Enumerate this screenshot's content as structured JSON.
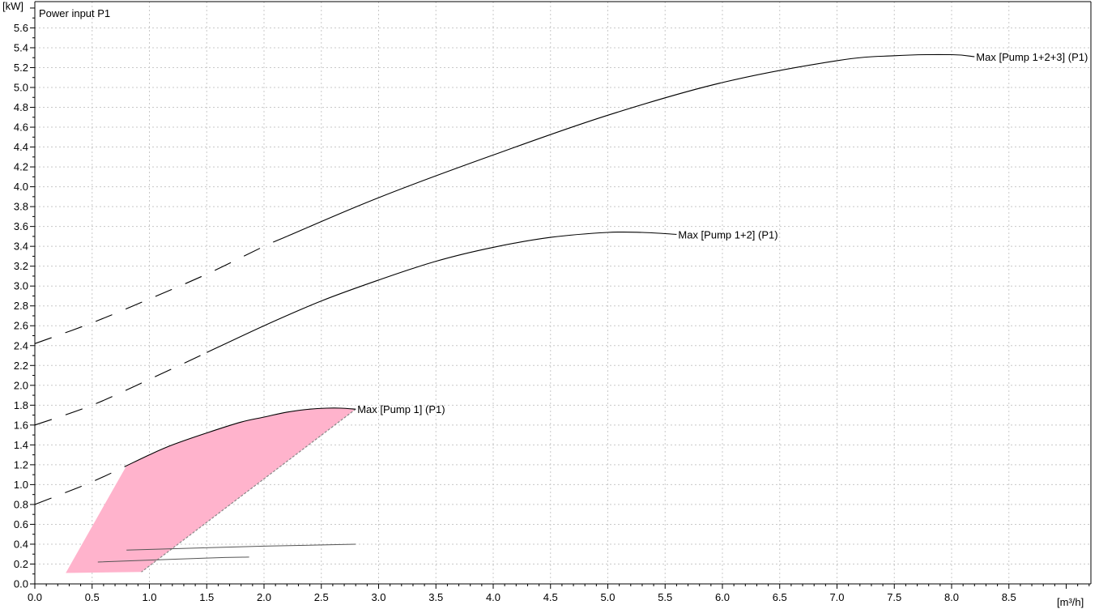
{
  "chart_data": {
    "type": "line",
    "title": "Power input P1",
    "y_unit": "[kW]",
    "x_unit": "[m³/h]",
    "xlim": [
      0,
      9.2
    ],
    "ylim": [
      0,
      5.8
    ],
    "x_major_ticks": [
      0.0,
      0.5,
      1.0,
      1.5,
      2.0,
      2.5,
      3.0,
      3.5,
      4.0,
      4.5,
      5.0,
      5.5,
      6.0,
      6.5,
      7.0,
      7.5,
      8.0,
      8.5
    ],
    "x_tick_labels": [
      "0.0",
      "0.5",
      "1.0",
      "1.5",
      "2.0",
      "2.5",
      "3.0",
      "3.5",
      "4.0",
      "4.5",
      "5.0",
      "5.5",
      "6.0",
      "6.5",
      "7.0",
      "7.5",
      "8.0",
      "8.5"
    ],
    "y_major_ticks": [
      0.0,
      0.2,
      0.4,
      0.6,
      0.8,
      1.0,
      1.2,
      1.4,
      1.6,
      1.8,
      2.0,
      2.2,
      2.4,
      2.6,
      2.8,
      3.0,
      3.2,
      3.4,
      3.6,
      3.8,
      4.0,
      4.2,
      4.4,
      4.6,
      4.8,
      5.0,
      5.2,
      5.4,
      5.6
    ],
    "y_tick_labels": [
      "0.0",
      "0.2",
      "0.4",
      "0.6",
      "0.8",
      "1.0",
      "1.2",
      "1.4",
      "1.6",
      "1.8",
      "2.0",
      "2.2",
      "2.4",
      "2.6",
      "2.8",
      "3.0",
      "3.2",
      "3.4",
      "3.6",
      "3.8",
      "4.0",
      "4.2",
      "4.4",
      "4.6",
      "4.8",
      "5.0",
      "5.2",
      "5.4",
      "5.6"
    ],
    "grid": true,
    "grid_style": "dotted",
    "series": [
      {
        "name": "Max [Pump 1] (P1)",
        "color": "#000000",
        "dashed_points": [
          [
            0.0,
            0.8
          ],
          [
            0.2,
            0.89
          ],
          [
            0.4,
            0.98
          ],
          [
            0.6,
            1.08
          ],
          [
            0.8,
            1.19
          ]
        ],
        "solid_points": [
          [
            0.8,
            1.19
          ],
          [
            1.0,
            1.3
          ],
          [
            1.2,
            1.4
          ],
          [
            1.5,
            1.52
          ],
          [
            1.8,
            1.63
          ],
          [
            2.0,
            1.68
          ],
          [
            2.2,
            1.73
          ],
          [
            2.4,
            1.76
          ],
          [
            2.55,
            1.77
          ],
          [
            2.67,
            1.77
          ],
          [
            2.8,
            1.76
          ]
        ]
      },
      {
        "name": "Max [Pump 1+2] (P1)",
        "color": "#000000",
        "dashed_points": [
          [
            0.0,
            1.6
          ],
          [
            0.5,
            1.8
          ],
          [
            1.0,
            2.06
          ],
          [
            1.5,
            2.33
          ]
        ],
        "solid_points": [
          [
            1.5,
            2.33
          ],
          [
            2.0,
            2.6
          ],
          [
            2.5,
            2.85
          ],
          [
            3.0,
            3.06
          ],
          [
            3.5,
            3.25
          ],
          [
            4.0,
            3.39
          ],
          [
            4.5,
            3.49
          ],
          [
            5.0,
            3.54
          ],
          [
            5.3,
            3.54
          ],
          [
            5.6,
            3.52
          ]
        ]
      },
      {
        "name": "Max [Pump 1+2+3] (P1)",
        "color": "#000000",
        "dashed_points": [
          [
            0.0,
            2.42
          ],
          [
            0.5,
            2.63
          ],
          [
            1.0,
            2.87
          ],
          [
            1.5,
            3.12
          ],
          [
            2.0,
            3.4
          ],
          [
            2.2,
            3.5
          ]
        ],
        "solid_points": [
          [
            2.2,
            3.5
          ],
          [
            3.0,
            3.89
          ],
          [
            4.0,
            4.32
          ],
          [
            5.0,
            4.72
          ],
          [
            6.0,
            5.05
          ],
          [
            7.0,
            5.27
          ],
          [
            7.5,
            5.32
          ],
          [
            8.0,
            5.33
          ],
          [
            8.2,
            5.31
          ]
        ]
      }
    ],
    "minor_curves": [
      {
        "color": "#555555",
        "points": [
          [
            0.8,
            0.34
          ],
          [
            2.0,
            0.38
          ],
          [
            2.8,
            0.4
          ]
        ]
      },
      {
        "color": "#555555",
        "points": [
          [
            0.55,
            0.22
          ],
          [
            1.5,
            0.26
          ],
          [
            1.87,
            0.27
          ]
        ]
      }
    ],
    "operating_area": {
      "fill": "#ffb3cc",
      "points": [
        [
          0.8,
          1.19
        ],
        [
          1.0,
          1.3
        ],
        [
          1.2,
          1.4
        ],
        [
          1.5,
          1.52
        ],
        [
          1.8,
          1.63
        ],
        [
          2.0,
          1.68
        ],
        [
          2.2,
          1.73
        ],
        [
          2.4,
          1.76
        ],
        [
          2.55,
          1.77
        ],
        [
          2.67,
          1.77
        ],
        [
          2.8,
          1.76
        ],
        [
          0.93,
          0.12
        ],
        [
          0.27,
          0.11
        ]
      ]
    },
    "operating_area_edge": {
      "color": "#888888",
      "from": [
        2.8,
        1.76
      ],
      "to": [
        0.93,
        0.12
      ]
    }
  }
}
